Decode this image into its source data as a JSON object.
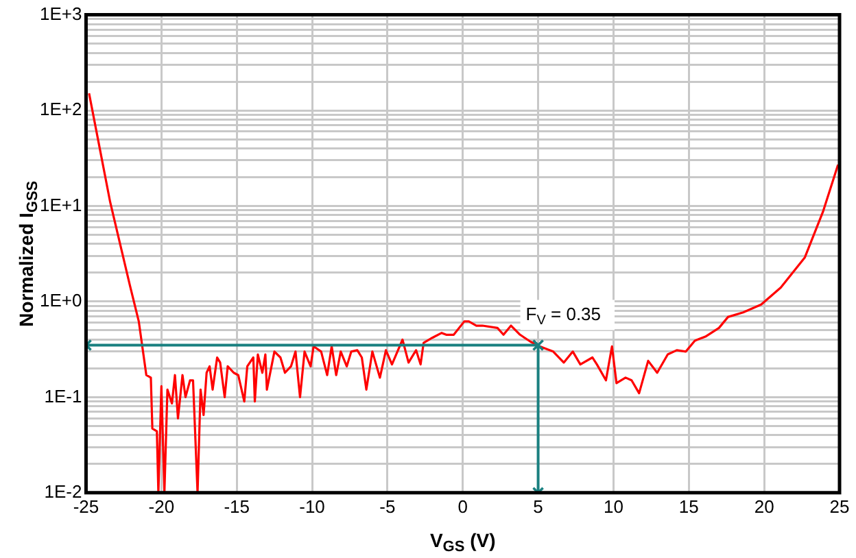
{
  "chart_data": {
    "type": "line",
    "xlabel": "V$_{GS}$ (V)",
    "ylabel": "Normalized I$_{GSS}$",
    "log": "y",
    "grid": true,
    "legend": false,
    "marker": "none",
    "line_style": "solid",
    "xlim": [
      -25,
      25
    ],
    "xticks": [
      -25,
      -20,
      -15,
      -10,
      -5,
      0,
      5,
      10,
      15,
      20,
      25
    ],
    "ylim": [
      0.01,
      1000
    ],
    "yticks": [
      {
        "value": 0.01,
        "label": "1E-2"
      },
      {
        "value": 0.02,
        "label": null
      },
      {
        "value": 0.03,
        "label": null
      },
      {
        "value": 0.04,
        "label": null
      },
      {
        "value": 0.05,
        "label": null
      },
      {
        "value": 0.06,
        "label": null
      },
      {
        "value": 0.07,
        "label": null
      },
      {
        "value": 0.08,
        "label": null
      },
      {
        "value": 0.09,
        "label": null
      },
      {
        "value": 0.1,
        "label": "1E-1"
      },
      {
        "value": 0.2,
        "label": null
      },
      {
        "value": 0.3,
        "label": null
      },
      {
        "value": 0.4,
        "label": null
      },
      {
        "value": 0.5,
        "label": null
      },
      {
        "value": 0.6,
        "label": null
      },
      {
        "value": 0.7,
        "label": null
      },
      {
        "value": 0.8,
        "label": null
      },
      {
        "value": 0.9,
        "label": null
      },
      {
        "value": 1,
        "label": "1E+0"
      },
      {
        "value": 2,
        "label": null
      },
      {
        "value": 3,
        "label": null
      },
      {
        "value": 4,
        "label": null
      },
      {
        "value": 5,
        "label": null
      },
      {
        "value": 6,
        "label": null
      },
      {
        "value": 7,
        "label": null
      },
      {
        "value": 8,
        "label": null
      },
      {
        "value": 9,
        "label": null
      },
      {
        "value": 10,
        "label": "1E+1"
      },
      {
        "value": 20,
        "label": null
      },
      {
        "value": 30,
        "label": null
      },
      {
        "value": 40,
        "label": null
      },
      {
        "value": 50,
        "label": null
      },
      {
        "value": 60,
        "label": null
      },
      {
        "value": 70,
        "label": null
      },
      {
        "value": 80,
        "label": null
      },
      {
        "value": 90,
        "label": null
      },
      {
        "value": 100,
        "label": "1E+2"
      },
      {
        "value": 200,
        "label": null
      },
      {
        "value": 300,
        "label": null
      },
      {
        "value": 400,
        "label": null
      },
      {
        "value": 500,
        "label": null
      },
      {
        "value": 600,
        "label": null
      },
      {
        "value": 700,
        "label": null
      },
      {
        "value": 800,
        "label": null
      },
      {
        "value": 900,
        "label": null
      },
      {
        "value": 1000,
        "label": "1E+3"
      }
    ],
    "series": [
      {
        "color": "#ff0000",
        "x": [
          -24.8,
          -23.4,
          -22.1,
          -21.5,
          -21.0,
          -20.7,
          -20.6,
          -20.3,
          -20.2,
          -20.0,
          -19.8,
          -19.6,
          -19.3,
          -19.1,
          -18.9,
          -18.6,
          -18.4,
          -18.1,
          -17.9,
          -17.6,
          -17.4,
          -17.2,
          -17.0,
          -16.8,
          -16.6,
          -16.3,
          -16.1,
          -15.8,
          -15.6,
          -15.2,
          -14.9,
          -14.5,
          -14.3,
          -13.9,
          -13.8,
          -13.6,
          -13.3,
          -13.1,
          -13.0,
          -12.5,
          -12.1,
          -11.8,
          -11.4,
          -11.1,
          -10.8,
          -10.5,
          -10.1,
          -9.9,
          -9.4,
          -9.0,
          -8.7,
          -8.4,
          -8.1,
          -7.7,
          -7.4,
          -7.0,
          -6.7,
          -6.4,
          -6.0,
          -5.5,
          -5.1,
          -4.7,
          -4.0,
          -3.6,
          -3.1,
          -2.8,
          -2.6,
          -2.0,
          -1.4,
          -1.1,
          -0.6,
          0.1,
          0.4,
          0.9,
          1.3,
          2.3,
          2.7,
          3.2,
          3.8,
          4.5,
          5.1,
          6.0,
          6.7,
          7.3,
          7.8,
          8.6,
          8.9,
          9.5,
          9.9,
          10.2,
          10.8,
          11.2,
          11.7,
          12.3,
          12.9,
          13.6,
          14.2,
          14.8,
          15.4,
          16.1,
          17.0,
          17.6,
          18.6,
          19.8,
          21.1,
          22.7,
          23.9,
          24.9
        ],
        "values": [
          151,
          11,
          1.5,
          0.62,
          0.17,
          0.16,
          0.047,
          0.044,
          0.01,
          0.13,
          0.01,
          0.12,
          0.086,
          0.17,
          0.06,
          0.17,
          0.1,
          0.15,
          0.15,
          0.01,
          0.12,
          0.065,
          0.18,
          0.21,
          0.12,
          0.26,
          0.23,
          0.1,
          0.21,
          0.18,
          0.17,
          0.09,
          0.21,
          0.26,
          0.09,
          0.28,
          0.18,
          0.28,
          0.12,
          0.3,
          0.26,
          0.18,
          0.21,
          0.3,
          0.1,
          0.3,
          0.21,
          0.34,
          0.3,
          0.17,
          0.34,
          0.17,
          0.3,
          0.21,
          0.3,
          0.31,
          0.26,
          0.12,
          0.3,
          0.16,
          0.31,
          0.22,
          0.4,
          0.23,
          0.31,
          0.22,
          0.37,
          0.42,
          0.47,
          0.45,
          0.45,
          0.62,
          0.62,
          0.56,
          0.56,
          0.53,
          0.45,
          0.56,
          0.45,
          0.38,
          0.34,
          0.3,
          0.23,
          0.3,
          0.22,
          0.26,
          0.22,
          0.15,
          0.34,
          0.14,
          0.16,
          0.15,
          0.11,
          0.24,
          0.18,
          0.28,
          0.31,
          0.3,
          0.39,
          0.43,
          0.53,
          0.69,
          0.77,
          0.93,
          1.4,
          2.9,
          8.7,
          27
        ]
      },
      {
        "color": "#1a8080",
        "marker": "cross",
        "x": [
          -25,
          5,
          5
        ],
        "values": [
          0.35,
          0.35,
          0.01
        ]
      }
    ],
    "annotations": [
      {
        "text": "F$_{V}$ = 0.35",
        "x": 5,
        "y": 0.35
      }
    ]
  }
}
